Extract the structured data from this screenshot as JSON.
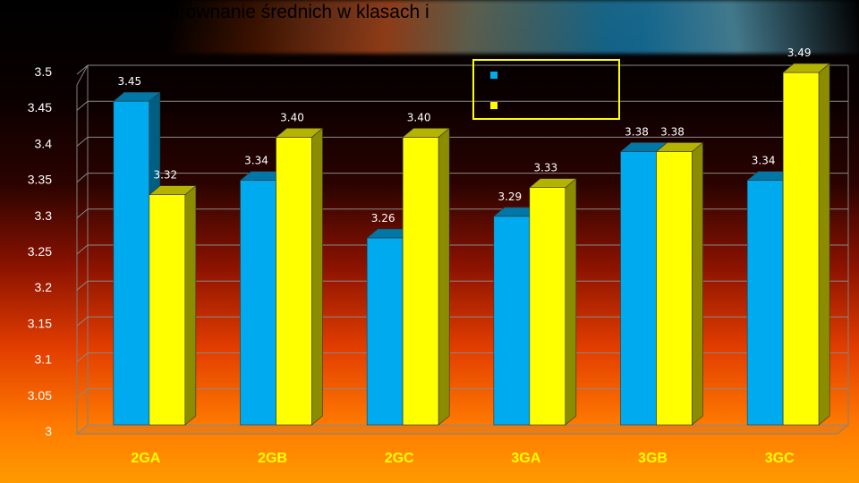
{
  "title": "Porównanie średnich w klasach i",
  "chart_data": {
    "type": "bar",
    "categories": [
      "2GA",
      "2GB",
      "2GC",
      "3GA",
      "3GB",
      "3GC"
    ],
    "series": [
      {
        "values": [
          3.45,
          3.34,
          3.26,
          3.29,
          3.38,
          3.34
        ],
        "color": "#00aaee",
        "data_labels": [
          "3.45",
          "3.34",
          "3.26",
          "3.29",
          "3.38",
          "3.34"
        ]
      },
      {
        "values": [
          3.32,
          3.4,
          3.4,
          3.33,
          3.38,
          3.49
        ],
        "color": "#ffff00",
        "data_labels": [
          "3.32",
          "3.40",
          "3.40",
          "3.33",
          "3.38",
          "3.49"
        ]
      }
    ],
    "ylim": [
      3,
      3.5
    ],
    "y_ticks": [
      "3",
      "3.05",
      "3.1",
      "3.15",
      "3.2",
      "3.25",
      "3.3",
      "3.35",
      "3.4",
      "3.45",
      "3.5"
    ],
    "grid": true,
    "legend_position": "top-center",
    "style": "3d-columns"
  }
}
